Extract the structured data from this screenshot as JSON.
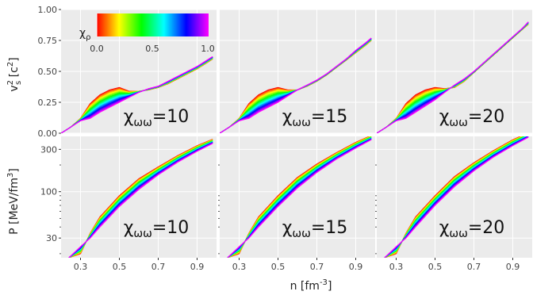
{
  "figure": {
    "xlabel": "n [fm",
    "xlabel_sup": "-3",
    "xlabel_end": "]",
    "top_ylabel": "v",
    "top_ylabel_sub": "s",
    "top_ylabel_sup": "2",
    "top_ylabel_unit": " [c",
    "top_ylabel_unit_sup": "2",
    "top_ylabel_end": "]",
    "bottom_ylabel": "P [MeV/fm",
    "bottom_ylabel_sup": "3",
    "bottom_ylabel_end": "]",
    "panel_bg": "#ebebeb",
    "grid_color": "#ffffff"
  },
  "colorbar": {
    "label": "χ",
    "label_sub": "ρ",
    "ticks": [
      "0.0",
      "0.5",
      "1.0"
    ],
    "tick_values": [
      0,
      0.5,
      1
    ],
    "range": [
      0,
      1
    ],
    "colors": [
      "#ff0000",
      "#ffff00",
      "#00ff00",
      "#00ffff",
      "#0000ff",
      "#ff00ff"
    ]
  },
  "chart_data": [
    {
      "type": "line",
      "panel": "top",
      "ylim": [
        0,
        1
      ],
      "xlim": [
        0.2,
        1.0
      ],
      "xticks": [
        "0.3",
        "0.5",
        "0.7",
        "0.9"
      ],
      "yticks": [
        "0.00",
        "0.25",
        "0.50",
        "0.75",
        "1.00"
      ],
      "annotations": [
        {
          "base": "χ",
          "sub": "ωω",
          "value": "=10"
        },
        {
          "base": "χ",
          "sub": "ωω",
          "value": "=15"
        },
        {
          "base": "χ",
          "sub": "ωω",
          "value": "=20"
        }
      ],
      "chi_omega": [
        10,
        15,
        20
      ],
      "chi_rho_values": [
        0.0,
        0.05,
        0.1,
        0.15,
        0.2,
        0.25,
        0.3,
        0.35,
        0.4,
        0.45,
        0.5,
        0.55,
        0.6,
        0.65,
        0.7,
        0.75,
        0.8,
        0.85,
        0.9,
        0.95,
        1.0
      ],
      "x": [
        0.2,
        0.25,
        0.3,
        0.35,
        0.4,
        0.45,
        0.5,
        0.55,
        0.6,
        0.65,
        0.7,
        0.75,
        0.8,
        0.85,
        0.9,
        0.95,
        0.98
      ],
      "series_chi_rho_0": [
        [
          0.0,
          0.05,
          0.12,
          0.24,
          0.31,
          0.35,
          0.37,
          0.34,
          0.34,
          0.35,
          0.37,
          0.4,
          0.44,
          0.48,
          0.52,
          0.57,
          0.6
        ],
        [
          0.0,
          0.05,
          0.12,
          0.24,
          0.31,
          0.35,
          0.37,
          0.35,
          0.35,
          0.38,
          0.42,
          0.47,
          0.53,
          0.59,
          0.65,
          0.71,
          0.75
        ],
        [
          0.0,
          0.05,
          0.12,
          0.24,
          0.31,
          0.35,
          0.37,
          0.36,
          0.37,
          0.42,
          0.49,
          0.56,
          0.63,
          0.7,
          0.77,
          0.84,
          0.88
        ]
      ],
      "series_chi_rho_1": [
        [
          0.0,
          0.05,
          0.1,
          0.12,
          0.17,
          0.21,
          0.25,
          0.29,
          0.33,
          0.36,
          0.38,
          0.42,
          0.46,
          0.5,
          0.54,
          0.59,
          0.62
        ],
        [
          0.0,
          0.05,
          0.1,
          0.12,
          0.17,
          0.21,
          0.25,
          0.3,
          0.35,
          0.39,
          0.43,
          0.48,
          0.54,
          0.6,
          0.67,
          0.73,
          0.77
        ],
        [
          0.0,
          0.05,
          0.1,
          0.12,
          0.17,
          0.22,
          0.27,
          0.33,
          0.39,
          0.44,
          0.5,
          0.57,
          0.64,
          0.71,
          0.78,
          0.85,
          0.9
        ]
      ]
    },
    {
      "type": "line",
      "panel": "bottom",
      "yscale": "log",
      "ylim": [
        18,
        420
      ],
      "xlim": [
        0.2,
        1.0
      ],
      "xticks": [
        "0.3",
        "0.5",
        "0.7",
        "0.9"
      ],
      "yticks": [
        "30",
        "100",
        "300"
      ],
      "annotations": [
        {
          "base": "χ",
          "sub": "ωω",
          "value": "=10"
        },
        {
          "base": "χ",
          "sub": "ωω",
          "value": "=15"
        },
        {
          "base": "χ",
          "sub": "ωω",
          "value": "=20"
        }
      ],
      "chi_omega": [
        10,
        15,
        20
      ],
      "chi_rho_values": [
        0.0,
        0.05,
        0.1,
        0.15,
        0.2,
        0.25,
        0.3,
        0.35,
        0.4,
        0.45,
        0.5,
        0.55,
        0.6,
        0.65,
        0.7,
        0.75,
        0.8,
        0.85,
        0.9,
        0.95,
        1.0
      ],
      "x": [
        0.24,
        0.3,
        0.35,
        0.4,
        0.5,
        0.6,
        0.7,
        0.8,
        0.9,
        0.98
      ],
      "series_chi_rho_0": [
        [
          18,
          20,
          34,
          52,
          90,
          140,
          190,
          255,
          330,
          390
        ],
        [
          18,
          20,
          34,
          52,
          90,
          145,
          205,
          275,
          360,
          430
        ],
        [
          18,
          20,
          34,
          52,
          90,
          148,
          212,
          290,
          385,
          460
        ]
      ],
      "series_chi_rho_1": [
        [
          18,
          24,
          30,
          40,
          68,
          106,
          155,
          215,
          285,
          350
        ],
        [
          18,
          24,
          30,
          40,
          68,
          110,
          165,
          232,
          310,
          385
        ],
        [
          18,
          24,
          30,
          40,
          70,
          114,
          172,
          245,
          330,
          410
        ]
      ]
    }
  ]
}
